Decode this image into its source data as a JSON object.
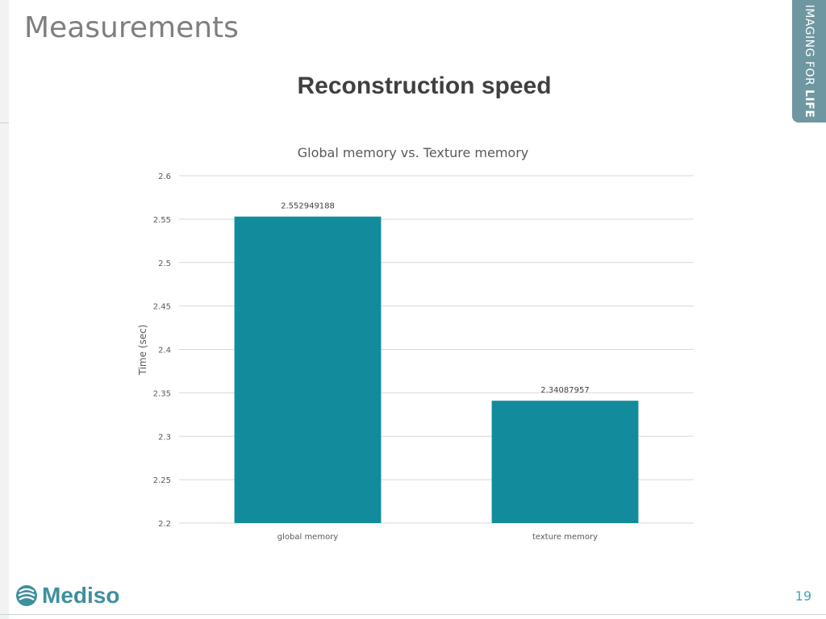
{
  "slide": {
    "title": "Measurements",
    "subtitle": "Reconstruction speed",
    "tag_prefix": "IMAGING FOR ",
    "tag_bold": "LIFE",
    "logo_text": "Mediso",
    "page_number": "19"
  },
  "colors": {
    "bar": "#128c9c",
    "grid": "#d9d9d9",
    "tag": "#6f97a1",
    "logo": "#3f8f9f"
  },
  "chart_data": {
    "type": "bar",
    "title": "Global memory vs. Texture memory",
    "xlabel": "",
    "ylabel": "Time (sec)",
    "categories": [
      "global memory",
      "texture memory"
    ],
    "values": [
      2.552949188,
      2.34087957
    ],
    "value_labels": [
      "2.552949188",
      "2.34087957"
    ],
    "ylim": [
      2.2,
      2.6
    ],
    "yticks": [
      2.2,
      2.25,
      2.3,
      2.35,
      2.4,
      2.45,
      2.5,
      2.55,
      2.6
    ],
    "ytick_labels": [
      "2.2",
      "2.25",
      "2.3",
      "2.35",
      "2.4",
      "2.45",
      "2.5",
      "2.55",
      "2.6"
    ],
    "grid": true,
    "legend": "none"
  }
}
